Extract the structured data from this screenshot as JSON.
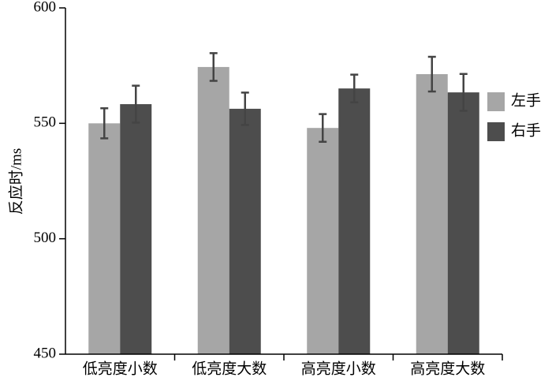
{
  "chart_data": {
    "type": "bar",
    "y_label": "反应时/ms",
    "categories": [
      "低亮度小数",
      "低亮度大数",
      "高亮度小数",
      "高亮度大数"
    ],
    "series": [
      {
        "name": "左手",
        "color": "#a6a6a6",
        "values": [
          550,
          574.4,
          548,
          571.3
        ],
        "errors": [
          6.5,
          6,
          6,
          7.5
        ]
      },
      {
        "name": "右手",
        "color": "#4d4d4d",
        "values": [
          558.3,
          556.3,
          565.1,
          563.4
        ],
        "errors": [
          8,
          7,
          6,
          8
        ]
      }
    ],
    "ylim": [
      450,
      600
    ],
    "yticks": [
      450,
      500,
      550,
      600
    ],
    "legend": "right"
  }
}
